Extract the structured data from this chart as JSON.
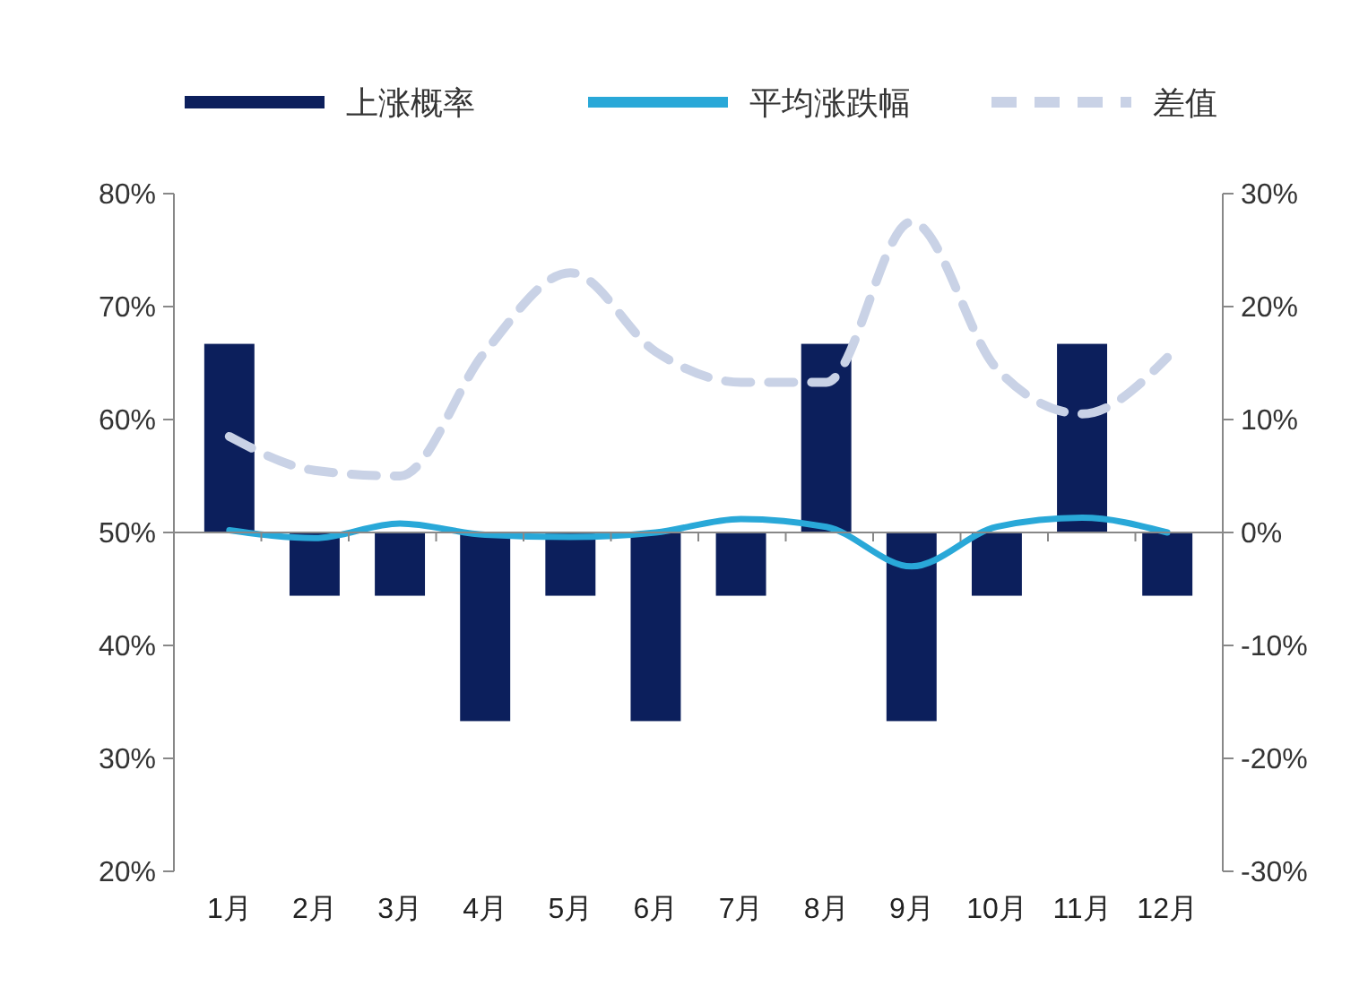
{
  "chart_data": {
    "type": "bar",
    "categories": [
      "1月",
      "2月",
      "3月",
      "4月",
      "5月",
      "6月",
      "7月",
      "8月",
      "9月",
      "10月",
      "11月",
      "12月"
    ],
    "series": [
      {
        "name": "上涨概率",
        "color": "#0c1f5c",
        "base": [
          50,
          50,
          50,
          50,
          50,
          50,
          50,
          50,
          50,
          50,
          50,
          50
        ],
        "values": [
          16.7,
          -5.6,
          -5.6,
          -16.7,
          -5.6,
          -16.7,
          -5.6,
          16.7,
          -16.7,
          -5.6,
          16.7,
          -5.6
        ]
      },
      {
        "name": "平均涨跌幅",
        "type": "line",
        "axis": "y2",
        "color": "#29a8d8",
        "line_style": "solid",
        "values": [
          0.2,
          -0.5,
          0.8,
          -0.2,
          -0.4,
          0,
          1.2,
          0.5,
          -3,
          0.5,
          1.3,
          0
        ]
      },
      {
        "name": "差值",
        "type": "line",
        "axis": "y2",
        "color": "#c9d2e6",
        "line_style": "dashed",
        "values": [
          8.5,
          5.5,
          5,
          16,
          23,
          16,
          13.3,
          13.3,
          27.5,
          14.5,
          10.5,
          15.5
        ]
      }
    ],
    "ylim": [
      20,
      80
    ],
    "yticks": [
      {
        "value": 20,
        "label": "20%"
      },
      {
        "value": 30,
        "label": "30%"
      },
      {
        "value": 40,
        "label": "40%"
      },
      {
        "value": 50,
        "label": "50%"
      },
      {
        "value": 60,
        "label": "60%"
      },
      {
        "value": 70,
        "label": "70%"
      },
      {
        "value": 80,
        "label": "80%"
      }
    ],
    "y2lim": [
      -30,
      30
    ],
    "y2ticks": [
      {
        "value": -30,
        "label": "-30%"
      },
      {
        "value": -20,
        "label": "-20%"
      },
      {
        "value": -10,
        "label": "-10%"
      },
      {
        "value": 0,
        "label": "0%"
      },
      {
        "value": 10,
        "label": "10%"
      },
      {
        "value": 20,
        "label": "20%"
      },
      {
        "value": 30,
        "label": "30%"
      }
    ],
    "legend": "top"
  }
}
